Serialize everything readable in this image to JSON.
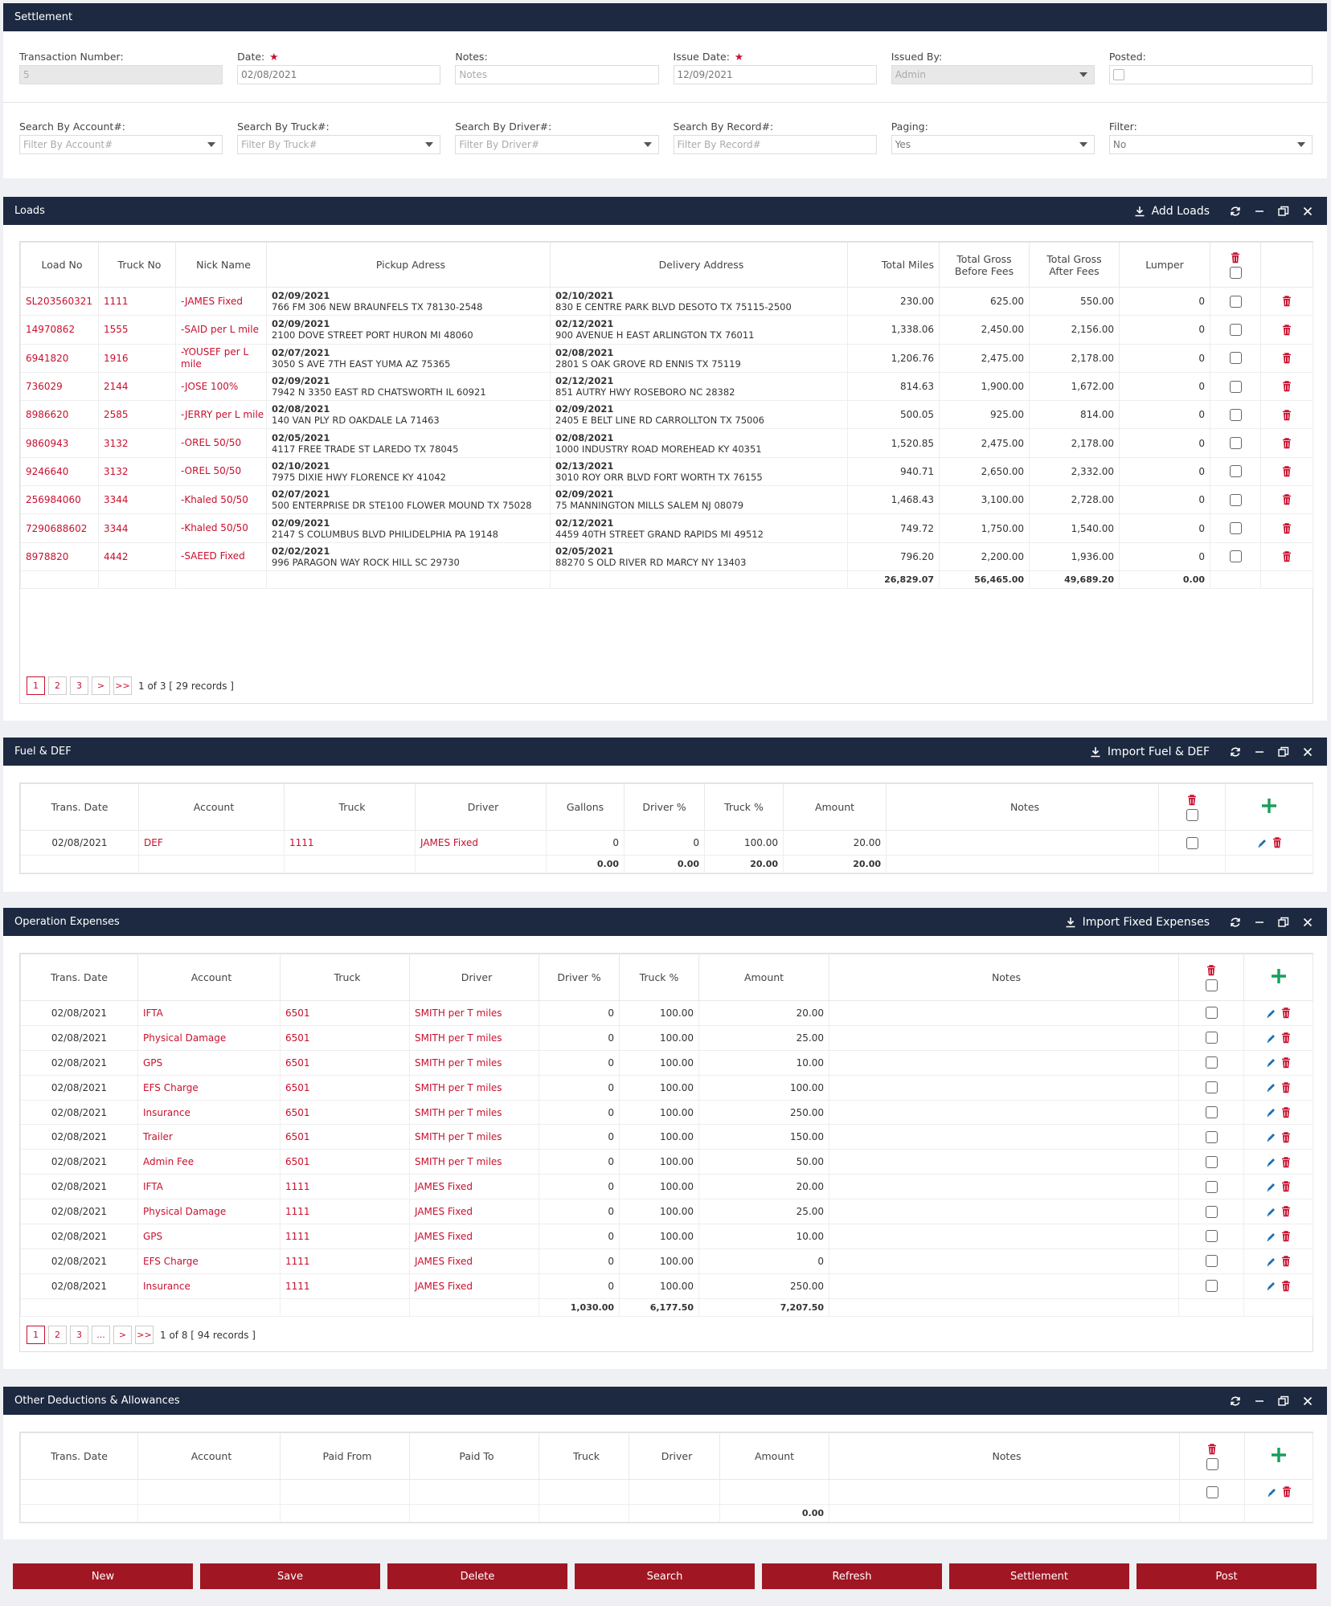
{
  "settlement": {
    "title": "Settlement",
    "fields": [
      {
        "label": "Transaction Number:",
        "value": "5",
        "placeholder": "",
        "required": false,
        "disabled": true,
        "dropdown": false
      },
      {
        "label": "Date:",
        "value": "02/08/2021",
        "placeholder": "",
        "required": true,
        "disabled": false,
        "dropdown": false
      },
      {
        "label": "Notes:",
        "value": "",
        "placeholder": "Notes",
        "required": false,
        "disabled": false,
        "dropdown": false
      },
      {
        "label": "Issue Date:",
        "value": "12/09/2021",
        "placeholder": "",
        "required": true,
        "disabled": false,
        "dropdown": false
      },
      {
        "label": "Issued By:",
        "value": "",
        "placeholder": "Admin",
        "required": false,
        "disabled": true,
        "dropdown": true
      },
      {
        "label": "Posted:",
        "value": "",
        "placeholder": "",
        "required": false,
        "disabled": false,
        "dropdown": false,
        "checkbox": true
      }
    ],
    "filters": [
      {
        "label": "Search By Account#:",
        "value": "",
        "placeholder": "Filter By Account#",
        "dropdown": true
      },
      {
        "label": "Search By Truck#:",
        "value": "",
        "placeholder": "Filter By Truck#",
        "dropdown": true
      },
      {
        "label": "Search By Driver#:",
        "value": "",
        "placeholder": "Filter By Driver#",
        "dropdown": true
      },
      {
        "label": "Search By Record#:",
        "value": "",
        "placeholder": "Filter By Record#",
        "dropdown": false
      },
      {
        "label": "Paging:",
        "value": "Yes",
        "placeholder": "",
        "dropdown": true
      },
      {
        "label": "Filter:",
        "value": "No",
        "placeholder": "",
        "dropdown": true
      }
    ]
  },
  "loads": {
    "title": "Loads",
    "action": "Add Loads",
    "columns": [
      "Load No",
      "Truck No",
      "Nick Name",
      "Pickup Adress",
      "Delivery Address",
      "Total Miles",
      "Total Gross Before Fees",
      "Total Gross After Fees",
      "Lumper"
    ],
    "rows": [
      {
        "load": "SL203560321",
        "truck": "1111",
        "nick": "-JAMES Fixed",
        "pdate": "02/09/2021",
        "paddr": "766 FM 306 NEW BRAUNFELS TX 78130-2548",
        "ddate": "02/10/2021",
        "daddr": "830 E CENTRE PARK BLVD DESOTO TX 75115-2500",
        "miles": "230.00",
        "gross": "625.00",
        "after": "550.00",
        "lumper": "0"
      },
      {
        "load": "14970862",
        "truck": "1555",
        "nick": "-SAID per L mile",
        "pdate": "02/09/2021",
        "paddr": "2100 DOVE STREET PORT HURON MI 48060",
        "ddate": "02/12/2021",
        "daddr": "900 AVENUE H EAST ARLINGTON TX 76011",
        "miles": "1,338.06",
        "gross": "2,450.00",
        "after": "2,156.00",
        "lumper": "0"
      },
      {
        "load": "6941820",
        "truck": "1916",
        "nick": "-YOUSEF per L mile",
        "pdate": "02/07/2021",
        "paddr": "3050 S AVE 7TH EAST YUMA AZ 75365",
        "ddate": "02/08/2021",
        "daddr": "2801 S OAK GROVE RD ENNIS TX 75119",
        "miles": "1,206.76",
        "gross": "2,475.00",
        "after": "2,178.00",
        "lumper": "0"
      },
      {
        "load": "736029",
        "truck": "2144",
        "nick": "-JOSE 100%",
        "pdate": "02/09/2021",
        "paddr": "7942 N 3350 EAST RD CHATSWORTH IL 60921",
        "ddate": "02/12/2021",
        "daddr": "851 AUTRY HWY ROSEBORO NC 28382",
        "miles": "814.63",
        "gross": "1,900.00",
        "after": "1,672.00",
        "lumper": "0"
      },
      {
        "load": "8986620",
        "truck": "2585",
        "nick": "-JERRY per L mile",
        "pdate": "02/08/2021",
        "paddr": "140 VAN PLY RD OAKDALE LA 71463",
        "ddate": "02/09/2021",
        "daddr": "2405 E BELT LINE RD CARROLLTON TX 75006",
        "miles": "500.05",
        "gross": "925.00",
        "after": "814.00",
        "lumper": "0"
      },
      {
        "load": "9860943",
        "truck": "3132",
        "nick": "-OREL 50/50",
        "pdate": "02/05/2021",
        "paddr": "4117 FREE TRADE ST LAREDO TX 78045",
        "ddate": "02/08/2021",
        "daddr": "1000 INDUSTRY ROAD MOREHEAD KY 40351",
        "miles": "1,520.85",
        "gross": "2,475.00",
        "after": "2,178.00",
        "lumper": "0"
      },
      {
        "load": "9246640",
        "truck": "3132",
        "nick": "-OREL 50/50",
        "pdate": "02/10/2021",
        "paddr": "7975 DIXIE HWY FLORENCE KY 41042",
        "ddate": "02/13/2021",
        "daddr": "3010 ROY ORR BLVD FORT WORTH TX 76155",
        "miles": "940.71",
        "gross": "2,650.00",
        "after": "2,332.00",
        "lumper": "0"
      },
      {
        "load": "256984060",
        "truck": "3344",
        "nick": "-Khaled 50/50",
        "pdate": "02/07/2021",
        "paddr": "500 ENTERPRISE DR STE100 FLOWER MOUND TX 75028",
        "ddate": "02/09/2021",
        "daddr": "75 MANNINGTON MILLS SALEM NJ 08079",
        "miles": "1,468.43",
        "gross": "3,100.00",
        "after": "2,728.00",
        "lumper": "0"
      },
      {
        "load": "7290688602",
        "truck": "3344",
        "nick": "-Khaled 50/50",
        "pdate": "02/09/2021",
        "paddr": "2147 S COLUMBUS BLVD PHILIDELPHIA PA 19148",
        "ddate": "02/12/2021",
        "daddr": "4459 40TH STREET GRAND RAPIDS MI 49512",
        "miles": "749.72",
        "gross": "1,750.00",
        "after": "1,540.00",
        "lumper": "0"
      },
      {
        "load": "8978820",
        "truck": "4442",
        "nick": "-SAEED Fixed",
        "pdate": "02/02/2021",
        "paddr": "996 PARAGON WAY ROCK HILL SC 29730",
        "ddate": "02/05/2021",
        "daddr": "88270 S OLD RIVER RD MARCY NY 13403",
        "miles": "796.20",
        "gross": "2,200.00",
        "after": "1,936.00",
        "lumper": "0"
      }
    ],
    "totals": {
      "miles": "26,829.07",
      "gross": "56,465.00",
      "after": "49,689.20",
      "lumper": "0.00"
    },
    "pages": [
      "1",
      "2",
      "3",
      ">",
      ">>"
    ],
    "page_info": "1 of 3 [ 29 records ]"
  },
  "fuel": {
    "title": "Fuel & DEF",
    "action": "Import Fuel & DEF",
    "columns": [
      "Trans. Date",
      "Account",
      "Truck",
      "Driver",
      "Gallons",
      "Driver %",
      "Truck %",
      "Amount",
      "Notes"
    ],
    "rows": [
      {
        "date": "02/08/2021",
        "account": "DEF",
        "truck": "1111",
        "driver": "JAMES Fixed",
        "gallons": "0",
        "dpct": "0",
        "tpct": "100.00",
        "amount": "20.00",
        "notes": ""
      }
    ],
    "totals": {
      "gallons": "0.00",
      "dpct": "0.00",
      "tpct": "20.00",
      "amount": "20.00"
    }
  },
  "opex": {
    "title": "Operation Expenses",
    "action": "Import Fixed Expenses",
    "columns": [
      "Trans. Date",
      "Account",
      "Truck",
      "Driver",
      "Driver %",
      "Truck %",
      "Amount",
      "Notes"
    ],
    "rows": [
      {
        "date": "02/08/2021",
        "account": "IFTA",
        "truck": "6501",
        "driver": "SMITH per T miles",
        "dpct": "0",
        "tpct": "100.00",
        "amount": "20.00"
      },
      {
        "date": "02/08/2021",
        "account": "Physical Damage",
        "truck": "6501",
        "driver": "SMITH per T miles",
        "dpct": "0",
        "tpct": "100.00",
        "amount": "25.00"
      },
      {
        "date": "02/08/2021",
        "account": "GPS",
        "truck": "6501",
        "driver": "SMITH per T miles",
        "dpct": "0",
        "tpct": "100.00",
        "amount": "10.00"
      },
      {
        "date": "02/08/2021",
        "account": "EFS Charge",
        "truck": "6501",
        "driver": "SMITH per T miles",
        "dpct": "0",
        "tpct": "100.00",
        "amount": "100.00"
      },
      {
        "date": "02/08/2021",
        "account": "Insurance",
        "truck": "6501",
        "driver": "SMITH per T miles",
        "dpct": "0",
        "tpct": "100.00",
        "amount": "250.00"
      },
      {
        "date": "02/08/2021",
        "account": "Trailer",
        "truck": "6501",
        "driver": "SMITH per T miles",
        "dpct": "0",
        "tpct": "100.00",
        "amount": "150.00"
      },
      {
        "date": "02/08/2021",
        "account": "Admin Fee",
        "truck": "6501",
        "driver": "SMITH per T miles",
        "dpct": "0",
        "tpct": "100.00",
        "amount": "50.00"
      },
      {
        "date": "02/08/2021",
        "account": "IFTA",
        "truck": "1111",
        "driver": "JAMES Fixed",
        "dpct": "0",
        "tpct": "100.00",
        "amount": "20.00"
      },
      {
        "date": "02/08/2021",
        "account": "Physical Damage",
        "truck": "1111",
        "driver": "JAMES Fixed",
        "dpct": "0",
        "tpct": "100.00",
        "amount": "25.00"
      },
      {
        "date": "02/08/2021",
        "account": "GPS",
        "truck": "1111",
        "driver": "JAMES Fixed",
        "dpct": "0",
        "tpct": "100.00",
        "amount": "10.00"
      },
      {
        "date": "02/08/2021",
        "account": "EFS Charge",
        "truck": "1111",
        "driver": "JAMES Fixed",
        "dpct": "0",
        "tpct": "100.00",
        "amount": "0"
      },
      {
        "date": "02/08/2021",
        "account": "Insurance",
        "truck": "1111",
        "driver": "JAMES Fixed",
        "dpct": "0",
        "tpct": "100.00",
        "amount": "250.00"
      }
    ],
    "totals": {
      "dpct": "1,030.00",
      "tpct": "6,177.50",
      "amount": "7,207.50"
    },
    "pages": [
      "1",
      "2",
      "3",
      "...",
      ">",
      ">>"
    ],
    "page_info": "1 of 8 [ 94 records ]"
  },
  "other": {
    "title": "Other Deductions & Allowances",
    "columns": [
      "Trans. Date",
      "Account",
      "Paid From",
      "Paid To",
      "Truck",
      "Driver",
      "Amount",
      "Notes"
    ],
    "totals": {
      "amount": "0.00"
    }
  },
  "buttons": [
    "New",
    "Save",
    "Delete",
    "Search",
    "Refresh",
    "Settlement",
    "Post"
  ],
  "colors": {
    "header": "#1c2940",
    "accent": "#c8102e",
    "button": "#a01622",
    "add": "#1a9e5c",
    "edit": "#1b6fb3"
  }
}
